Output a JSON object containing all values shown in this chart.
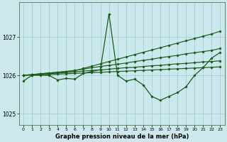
{
  "title": "Graphe pression niveau de la mer (hPa)",
  "bg_color": "#cce8ec",
  "grid_color": "#99cccc",
  "line_color": "#1a5c1a",
  "xlim": [
    -0.5,
    23.5
  ],
  "ylim": [
    1024.7,
    1027.9
  ],
  "yticks": [
    1025,
    1026,
    1027
  ],
  "xticks": [
    0,
    1,
    2,
    3,
    4,
    5,
    6,
    7,
    8,
    9,
    10,
    11,
    12,
    13,
    14,
    15,
    16,
    17,
    18,
    19,
    20,
    21,
    22,
    23
  ],
  "lines": [
    [
      1025.85,
      1026.0,
      1026.0,
      1026.0,
      1025.88,
      1025.92,
      1025.9,
      1026.05,
      1026.1,
      1026.15,
      1027.6,
      1026.0,
      1025.85,
      1025.9,
      1025.75,
      1025.45,
      1025.35,
      1025.45,
      1025.55,
      1025.7,
      1026.0,
      1026.2,
      1026.45,
      1026.6
    ],
    [
      1026.0,
      1026.02,
      1026.04,
      1026.06,
      1026.08,
      1026.1,
      1026.12,
      1026.18,
      1026.24,
      1026.3,
      1026.36,
      1026.42,
      1026.48,
      1026.54,
      1026.6,
      1026.66,
      1026.72,
      1026.78,
      1026.84,
      1026.9,
      1026.96,
      1027.02,
      1027.08,
      1027.15
    ],
    [
      1026.0,
      1026.02,
      1026.04,
      1026.06,
      1026.08,
      1026.1,
      1026.13,
      1026.16,
      1026.2,
      1026.23,
      1026.26,
      1026.29,
      1026.32,
      1026.36,
      1026.39,
      1026.42,
      1026.46,
      1026.49,
      1026.52,
      1026.56,
      1026.59,
      1026.62,
      1026.65,
      1026.7
    ],
    [
      1026.0,
      1026.01,
      1026.03,
      1026.04,
      1026.06,
      1026.07,
      1026.09,
      1026.11,
      1026.13,
      1026.14,
      1026.16,
      1026.18,
      1026.2,
      1026.21,
      1026.23,
      1026.25,
      1026.26,
      1026.28,
      1026.3,
      1026.31,
      1026.33,
      1026.35,
      1026.36,
      1026.38
    ],
    [
      1026.0,
      1026.01,
      1026.02,
      1026.02,
      1026.03,
      1026.04,
      1026.05,
      1026.06,
      1026.07,
      1026.08,
      1026.09,
      1026.1,
      1026.11,
      1026.12,
      1026.13,
      1026.14,
      1026.15,
      1026.16,
      1026.17,
      1026.18,
      1026.19,
      1026.2,
      1026.21,
      1026.22
    ]
  ]
}
